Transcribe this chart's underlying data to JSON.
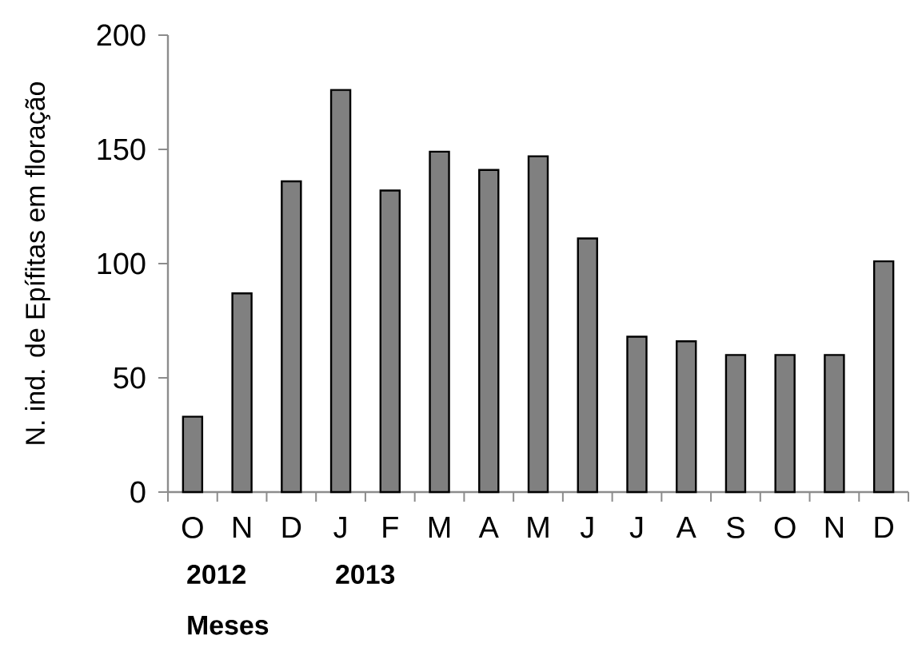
{
  "chart_data": {
    "type": "bar",
    "categories": [
      "O",
      "N",
      "D",
      "J",
      "F",
      "M",
      "A",
      "M",
      "J",
      "J",
      "A",
      "S",
      "O",
      "N",
      "D"
    ],
    "values": [
      33,
      87,
      136,
      176,
      132,
      149,
      141,
      147,
      111,
      68,
      66,
      60,
      60,
      60,
      101
    ],
    "color": "#808080",
    "ylabel": "N. ind. de Epífitas em floração",
    "xlabel": "Meses",
    "annotations": [
      "2012",
      "2013"
    ],
    "ylim": [
      0,
      200
    ],
    "yticks": [
      0,
      50,
      100,
      150,
      200
    ]
  }
}
